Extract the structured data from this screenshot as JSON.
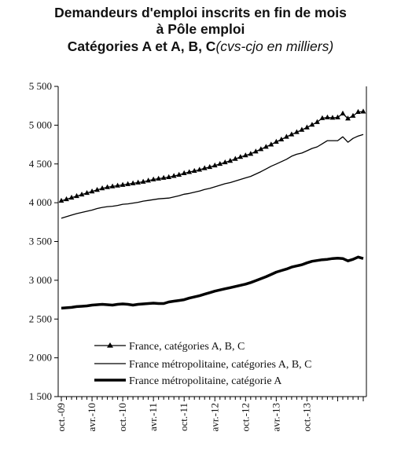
{
  "title": {
    "line1": "Demandeurs d'emploi inscrits en fin de mois",
    "line2": "à Pôle emploi",
    "line3_bold": "Catégories A et A, B, C",
    "line3_italic": "(cvs-cjo en milliers)"
  },
  "chart_data": {
    "type": "line",
    "x_tick_labels": [
      "oct.-09",
      "avr.-10",
      "oct.-10",
      "avr.-11",
      "oct.-11",
      "avr.-12",
      "oct.-12",
      "avr.-13",
      "oct.-13"
    ],
    "x_start": "oct.-09",
    "x_end": "oct.-13",
    "ylim": [
      1500,
      5500
    ],
    "y_ticks": [
      1500,
      2000,
      2500,
      3000,
      3500,
      4000,
      4500,
      5000,
      5500
    ],
    "y_tick_labels": [
      "1 500",
      "2 000",
      "2 500",
      "3 000",
      "3 500",
      "4 000",
      "4 500",
      "5 000",
      "5 500"
    ],
    "grid": false,
    "legend_position": "bottom-left",
    "series": [
      {
        "name": "France, catégories A, B, C",
        "style": "thin-triangle-markers",
        "color": "#000000",
        "values": [
          4025,
          4045,
          4065,
          4085,
          4105,
          4125,
          4145,
          4165,
          4185,
          4200,
          4210,
          4220,
          4230,
          4240,
          4250,
          4260,
          4270,
          4285,
          4300,
          4310,
          4320,
          4330,
          4345,
          4360,
          4380,
          4395,
          4410,
          4425,
          4445,
          4460,
          4480,
          4500,
          4520,
          4540,
          4565,
          4590,
          4610,
          4630,
          4660,
          4690,
          4720,
          4750,
          4785,
          4815,
          4850,
          4880,
          4910,
          4940,
          4970,
          5005,
          5040,
          5090,
          5100,
          5095,
          5100,
          5150,
          5085,
          5120,
          5170,
          5175
        ]
      },
      {
        "name": "France métropolitaine, catégories A, B, C",
        "style": "thin",
        "color": "#000000",
        "values": [
          3800,
          3820,
          3840,
          3860,
          3875,
          3890,
          3905,
          3925,
          3940,
          3950,
          3955,
          3965,
          3980,
          3985,
          3995,
          4005,
          4020,
          4030,
          4040,
          4050,
          4055,
          4060,
          4075,
          4090,
          4110,
          4120,
          4135,
          4150,
          4170,
          4185,
          4205,
          4225,
          4245,
          4260,
          4280,
          4300,
          4320,
          4340,
          4370,
          4400,
          4435,
          4470,
          4500,
          4530,
          4560,
          4600,
          4625,
          4640,
          4670,
          4700,
          4720,
          4760,
          4800,
          4800,
          4800,
          4850,
          4780,
          4830,
          4860,
          4880
        ]
      },
      {
        "name": "France métropolitaine, catégorie A",
        "style": "thick",
        "color": "#000000",
        "values": [
          2640,
          2645,
          2650,
          2660,
          2665,
          2670,
          2680,
          2685,
          2690,
          2685,
          2680,
          2690,
          2695,
          2690,
          2680,
          2690,
          2695,
          2700,
          2705,
          2700,
          2700,
          2720,
          2730,
          2740,
          2750,
          2770,
          2785,
          2800,
          2820,
          2840,
          2860,
          2875,
          2890,
          2905,
          2920,
          2935,
          2950,
          2970,
          2995,
          3020,
          3045,
          3075,
          3105,
          3125,
          3145,
          3170,
          3185,
          3200,
          3225,
          3245,
          3255,
          3265,
          3270,
          3280,
          3285,
          3280,
          3250,
          3270,
          3300,
          3280
        ]
      }
    ]
  }
}
